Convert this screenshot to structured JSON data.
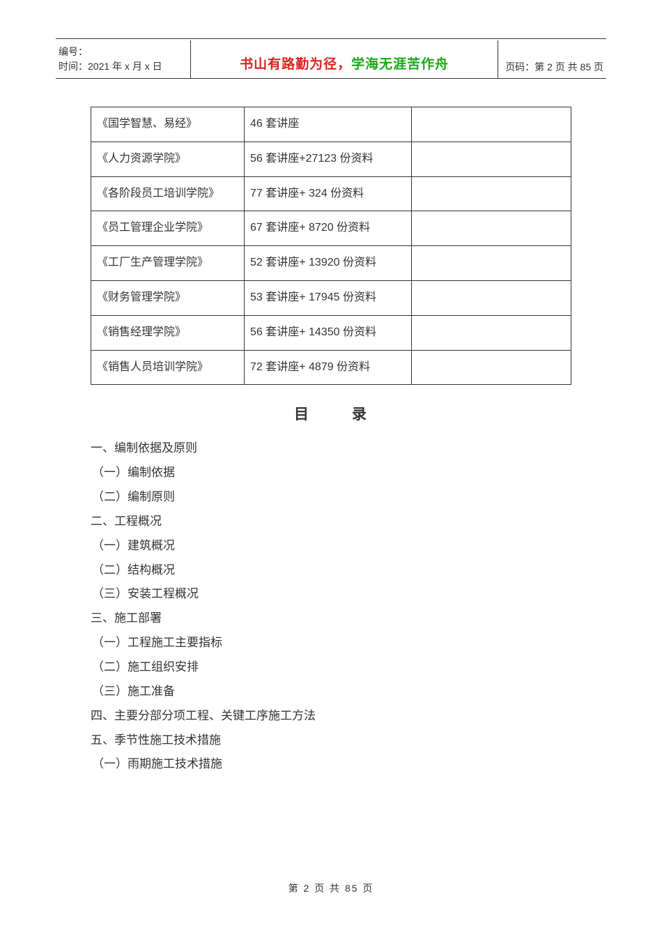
{
  "header": {
    "serial_label": "编号：",
    "date_label": "时间：2021 年 x 月 x 日",
    "motto_red": "书山有路勤为径，",
    "motto_green": "学海无涯苦作舟",
    "page_label": "页码：第 2 页  共 85 页"
  },
  "table": {
    "rows": [
      {
        "col1": "《国学智慧、易经》",
        "col2": "46 套讲座",
        "col3": ""
      },
      {
        "col1": "《人力资源学院》",
        "col2": "56 套讲座+27123 份资料",
        "col3": ""
      },
      {
        "col1": "《各阶段员工培训学院》",
        "col2": "77 套讲座+  324 份资料",
        "col3": ""
      },
      {
        "col1": "《员工管理企业学院》",
        "col2": "67 套讲座+  8720 份资料",
        "col3": ""
      },
      {
        "col1": "《工厂生产管理学院》",
        "col2": "52 套讲座+  13920 份资料",
        "col3": ""
      },
      {
        "col1": "《财务管理学院》",
        "col2": "53 套讲座+  17945 份资料",
        "col3": ""
      },
      {
        "col1": "《销售经理学院》",
        "col2": "56 套讲座+  14350 份资料",
        "col3": ""
      },
      {
        "col1": "《销售人员培训学院》",
        "col2": "72 套讲座+  4879 份资料",
        "col3": ""
      }
    ]
  },
  "toc": {
    "title_left": "目",
    "title_right": "录",
    "items": [
      {
        "level": 1,
        "text": "一、编制依据及原则"
      },
      {
        "level": 2,
        "text": "（一）编制依据"
      },
      {
        "level": 2,
        "text": "（二）编制原则"
      },
      {
        "level": 1,
        "text": "二、工程概况"
      },
      {
        "level": 2,
        "text": "（一）建筑概况"
      },
      {
        "level": 2,
        "text": "（二）结构概况"
      },
      {
        "level": 2,
        "text": "（三）安装工程概况"
      },
      {
        "level": 1,
        "text": "三、施工部署"
      },
      {
        "level": 2,
        "text": "（一）工程施工主要指标"
      },
      {
        "level": 2,
        "text": "（二）施工组织安排"
      },
      {
        "level": 2,
        "text": "（三）施工准备"
      },
      {
        "level": 1,
        "text": "四、主要分部分项工程、关键工序施工方法"
      },
      {
        "level": 1,
        "text": "五、季节性施工技术措施"
      },
      {
        "level": 2,
        "text": "（一）雨期施工技术措施"
      }
    ]
  },
  "footer": {
    "text": "第  2  页  共  85  页"
  }
}
